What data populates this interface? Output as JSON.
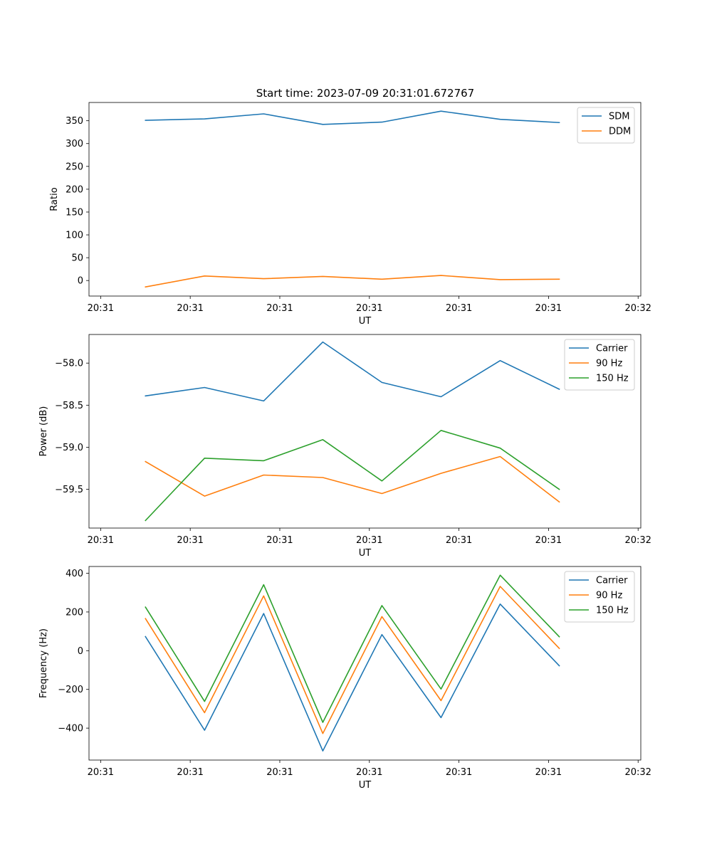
{
  "figure_title": "Start time: 2023-07-09 20:31:01.672767",
  "chart_data": [
    {
      "type": "line",
      "xlabel": "UT",
      "ylabel": "Ratio",
      "x_ticks": [
        "20:31",
        "20:31",
        "20:31",
        "20:31",
        "20:31",
        "20:31",
        "20:32"
      ],
      "x_tick_positions": [
        0,
        1,
        2,
        3,
        4,
        5,
        6
      ],
      "xlim": [
        -0.13,
        6.03
      ],
      "x": [
        0.5,
        1.16,
        1.82,
        2.48,
        3.14,
        3.8,
        4.46,
        5.12
      ],
      "ylim": [
        -34,
        390
      ],
      "y_ticks": [
        0,
        50,
        100,
        150,
        200,
        250,
        300,
        350
      ],
      "y_tick_labels": [
        "0",
        "50",
        "100",
        "150",
        "200",
        "250",
        "300",
        "350"
      ],
      "legend_position": "top-right",
      "series": [
        {
          "name": "SDM",
          "color": "#1f77b4",
          "values": [
            351,
            354,
            365,
            342,
            347,
            371,
            353,
            346
          ]
        },
        {
          "name": "DDM",
          "color": "#ff7f0e",
          "values": [
            -14,
            10,
            4,
            9,
            3,
            11,
            2,
            3
          ]
        }
      ]
    },
    {
      "type": "line",
      "xlabel": "UT",
      "ylabel": "Power (dB)",
      "x_ticks": [
        "20:31",
        "20:31",
        "20:31",
        "20:31",
        "20:31",
        "20:31",
        "20:32"
      ],
      "x_tick_positions": [
        0,
        1,
        2,
        3,
        4,
        5,
        6
      ],
      "xlim": [
        -0.13,
        6.03
      ],
      "x": [
        0.5,
        1.16,
        1.82,
        2.48,
        3.14,
        3.8,
        4.46,
        5.12
      ],
      "ylim": [
        -59.96,
        -57.66
      ],
      "y_ticks": [
        -59.5,
        -59.0,
        -58.5,
        -58.0
      ],
      "y_tick_labels": [
        "−59.5",
        "−59.0",
        "−58.5",
        "−58.0"
      ],
      "legend_position": "top-right",
      "series": [
        {
          "name": "Carrier",
          "color": "#1f77b4",
          "values": [
            -58.39,
            -58.29,
            -58.45,
            -57.75,
            -58.23,
            -58.4,
            -57.97,
            -58.31
          ]
        },
        {
          "name": "90 Hz",
          "color": "#ff7f0e",
          "values": [
            -59.17,
            -59.58,
            -59.33,
            -59.36,
            -59.55,
            -59.31,
            -59.11,
            -59.65
          ]
        },
        {
          "name": "150 Hz",
          "color": "#2ca02c",
          "values": [
            -59.87,
            -59.13,
            -59.16,
            -58.91,
            -59.4,
            -58.8,
            -59.01,
            -59.5
          ]
        }
      ]
    },
    {
      "type": "line",
      "xlabel": "UT",
      "ylabel": "Frequency (Hz)",
      "x_ticks": [
        "20:31",
        "20:31",
        "20:31",
        "20:31",
        "20:31",
        "20:31",
        "20:32"
      ],
      "x_tick_positions": [
        0,
        1,
        2,
        3,
        4,
        5,
        6
      ],
      "xlim": [
        -0.13,
        6.03
      ],
      "x": [
        0.5,
        1.16,
        1.82,
        2.48,
        3.14,
        3.8,
        4.46,
        5.12
      ],
      "ylim": [
        -565,
        435
      ],
      "y_ticks": [
        -400,
        -200,
        0,
        200,
        400
      ],
      "y_tick_labels": [
        "−400",
        "−200",
        "0",
        "200",
        "400"
      ],
      "legend_position": "top-right",
      "series": [
        {
          "name": "Carrier",
          "color": "#1f77b4",
          "values": [
            73,
            -411,
            192,
            -518,
            83,
            -346,
            241,
            -78
          ]
        },
        {
          "name": "90 Hz",
          "color": "#ff7f0e",
          "values": [
            166,
            -320,
            283,
            -428,
            176,
            -258,
            332,
            12
          ]
        },
        {
          "name": "150 Hz",
          "color": "#2ca02c",
          "values": [
            225,
            -262,
            341,
            -370,
            233,
            -198,
            390,
            72
          ]
        }
      ]
    }
  ]
}
